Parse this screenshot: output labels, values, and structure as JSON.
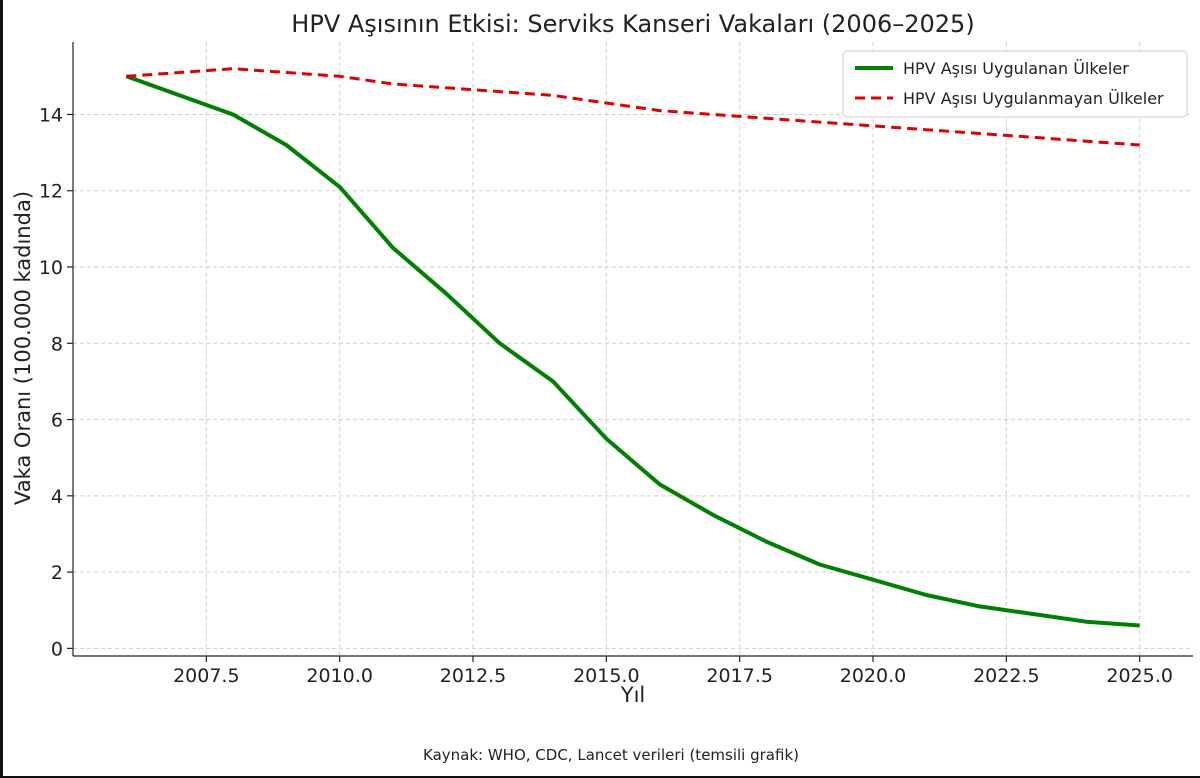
{
  "chart_data": {
    "type": "line",
    "title": "HPV Aşısının Etkisi: Serviks Kanseri Vakaları (2006–2025)",
    "xlabel": "Yıl",
    "ylabel": "Vaka Oranı (100.000 kadında)",
    "source": "Kaynak: WHO, CDC, Lancet verileri (temsili grafik)",
    "x": [
      2006,
      2007,
      2008,
      2009,
      2010,
      2011,
      2012,
      2013,
      2014,
      2015,
      2016,
      2017,
      2018,
      2019,
      2020,
      2021,
      2022,
      2023,
      2024,
      2025
    ],
    "series": [
      {
        "name": "HPV Aşısı Uygulanan Ülkeler",
        "color": "#008000",
        "style": "solid",
        "values": [
          15.0,
          14.5,
          14.0,
          13.2,
          12.1,
          10.5,
          9.3,
          8.0,
          7.0,
          5.5,
          4.3,
          3.5,
          2.8,
          2.2,
          1.8,
          1.4,
          1.1,
          0.9,
          0.7,
          0.6
        ]
      },
      {
        "name": "HPV Aşısı Uygulanmayan Ülkeler",
        "color": "#e00000",
        "style": "dashed",
        "values": [
          15.0,
          15.1,
          15.2,
          15.1,
          15.0,
          14.8,
          14.7,
          14.6,
          14.5,
          14.3,
          14.1,
          14.0,
          13.9,
          13.8,
          13.7,
          13.6,
          13.5,
          13.4,
          13.3,
          13.2
        ]
      }
    ],
    "xticks": [
      "2007.5",
      "2010.0",
      "2012.5",
      "2015.0",
      "2017.5",
      "2020.0",
      "2022.5",
      "2025.0"
    ],
    "yticks": [
      "0",
      "2",
      "4",
      "6",
      "8",
      "10",
      "12",
      "14"
    ],
    "xlim": [
      2005.0,
      2026.0
    ],
    "ylim": [
      -0.2,
      15.9
    ],
    "grid": true,
    "legend": "top-right"
  }
}
